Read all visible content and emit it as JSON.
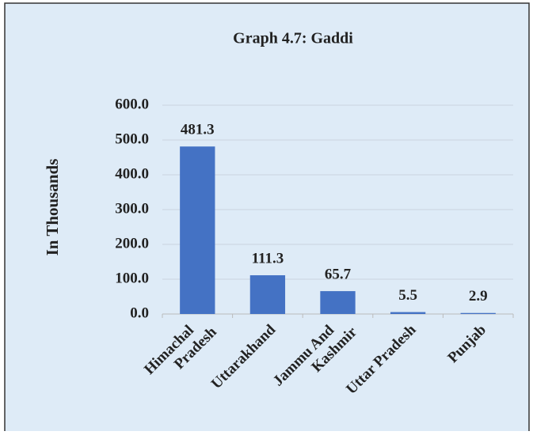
{
  "chart_data": {
    "type": "bar",
    "title": "Graph 4.7: Gaddi",
    "y_label": "In Thousands",
    "categories": [
      "Himachal Pradesh",
      "Uttarakhand",
      "Jammu And Kashmir",
      "Uttar Pradesh",
      "Punjab"
    ],
    "values": [
      481.3,
      111.3,
      65.7,
      5.5,
      2.9
    ],
    "color": "#4472c4",
    "ylim": [
      0,
      600
    ],
    "yticks": [
      {
        "value": 0,
        "label": "0.0"
      },
      {
        "value": 100,
        "label": "100.0"
      },
      {
        "value": 200,
        "label": "200.0"
      },
      {
        "value": 300,
        "label": "300.0"
      },
      {
        "value": 400,
        "label": "400.0"
      },
      {
        "value": 500,
        "label": "500.0"
      },
      {
        "value": 600,
        "label": "600.0"
      }
    ],
    "grid": true
  }
}
